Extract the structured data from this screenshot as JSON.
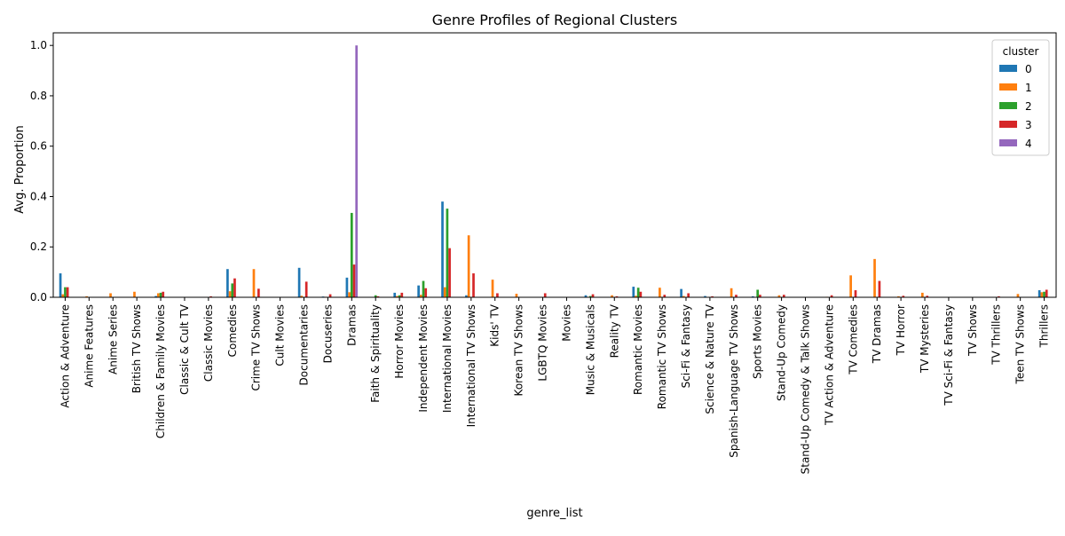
{
  "chart_data": {
    "type": "bar",
    "title": "Genre Profiles of Regional Clusters",
    "xlabel": "genre_list",
    "ylabel": "Avg. Proportion",
    "ylim": [
      0,
      1.05
    ],
    "yticks": [
      0.0,
      0.2,
      0.4,
      0.6,
      0.8,
      1.0
    ],
    "ytick_labels": [
      "0.0",
      "0.2",
      "0.4",
      "0.6",
      "0.8",
      "1.0"
    ],
    "grid": false,
    "legend": {
      "title": "cluster",
      "placement": "top-right"
    },
    "categories": [
      "Action & Adventure",
      "Anime Features",
      "Anime Series",
      "British TV Shows",
      "Children & Family Movies",
      "Classic & Cult TV",
      "Classic Movies",
      "Comedies",
      "Crime TV Shows",
      "Cult Movies",
      "Documentaries",
      "Docuseries",
      "Dramas",
      "Faith & Spirituality",
      "Horror Movies",
      "Independent Movies",
      "International Movies",
      "International TV Shows",
      "Kids' TV",
      "Korean TV Shows",
      "LGBTQ Movies",
      "Movies",
      "Music & Musicals",
      "Reality TV",
      "Romantic Movies",
      "Romantic TV Shows",
      "Sci-Fi & Fantasy",
      "Science & Nature TV",
      "Spanish-Language TV Shows",
      "Sports Movies",
      "Stand-Up Comedy",
      "Stand-Up Comedy & Talk Shows",
      "TV Action & Adventure",
      "TV Comedies",
      "TV Dramas",
      "TV Horror",
      "TV Mysteries",
      "TV Sci-Fi & Fantasy",
      "TV Shows",
      "TV Thrillers",
      "Teen TV Shows",
      "Thrillers"
    ],
    "series": [
      {
        "name": "0",
        "color": "#1f77b4",
        "values": [
          0.095,
          0.0,
          0.0,
          0.0,
          0.005,
          0.0,
          0.0,
          0.112,
          0.0,
          0.0,
          0.117,
          0.003,
          0.078,
          0.0,
          0.018,
          0.047,
          0.38,
          0.008,
          0.0,
          0.0,
          0.0,
          0.0,
          0.008,
          0.0,
          0.042,
          0.0,
          0.033,
          0.005,
          0.0,
          0.004,
          0.0,
          0.0,
          0.0,
          0.0,
          0.0,
          0.0,
          0.0,
          0.0,
          0.0,
          0.0,
          0.0,
          0.028
        ]
      },
      {
        "name": "1",
        "color": "#ff7f0e",
        "values": [
          0.012,
          0.004,
          0.016,
          0.022,
          0.016,
          0.0,
          0.0,
          0.024,
          0.112,
          0.0,
          0.006,
          0.002,
          0.02,
          0.0,
          0.005,
          0.01,
          0.04,
          0.246,
          0.07,
          0.014,
          0.0,
          0.0,
          0.002,
          0.008,
          0.006,
          0.038,
          0.005,
          0.0,
          0.036,
          0.0,
          0.008,
          0.0,
          0.002,
          0.087,
          0.152,
          0.004,
          0.018,
          0.0,
          0.0,
          0.0,
          0.013,
          0.02
        ]
      },
      {
        "name": "2",
        "color": "#2ca02c",
        "values": [
          0.04,
          0.0,
          0.0,
          0.0,
          0.018,
          0.0,
          0.0,
          0.055,
          0.0,
          0.0,
          0.0,
          0.0,
          0.335,
          0.008,
          0.008,
          0.065,
          0.352,
          0.0,
          0.0,
          0.0,
          0.0,
          0.0,
          0.005,
          0.0,
          0.038,
          0.0,
          0.0,
          0.0,
          0.0,
          0.03,
          0.0,
          0.0,
          0.0,
          0.0,
          0.0,
          0.0,
          0.0,
          0.0,
          0.0,
          0.0,
          0.0,
          0.022
        ]
      },
      {
        "name": "3",
        "color": "#d62728",
        "values": [
          0.04,
          0.0,
          0.0,
          0.0,
          0.022,
          0.0,
          0.004,
          0.075,
          0.034,
          0.0,
          0.062,
          0.012,
          0.13,
          0.004,
          0.018,
          0.036,
          0.195,
          0.095,
          0.016,
          0.0,
          0.016,
          0.0,
          0.012,
          0.004,
          0.022,
          0.01,
          0.016,
          0.004,
          0.01,
          0.01,
          0.01,
          0.0,
          0.008,
          0.028,
          0.065,
          0.006,
          0.006,
          0.0,
          0.0,
          0.004,
          0.0,
          0.03
        ]
      },
      {
        "name": "4",
        "color": "#9467bd",
        "values": [
          0.0,
          0.0,
          0.0,
          0.0,
          0.0,
          0.0,
          0.0,
          0.0,
          0.0,
          0.0,
          0.0,
          0.0,
          1.0,
          0.0,
          0.0,
          0.0,
          0.0,
          0.0,
          0.0,
          0.0,
          0.0,
          0.0,
          0.0,
          0.0,
          0.0,
          0.0,
          0.0,
          0.0,
          0.0,
          0.0,
          0.0,
          0.0,
          0.0,
          0.0,
          0.0,
          0.0,
          0.0,
          0.0,
          0.0,
          0.0,
          0.0,
          0.0
        ]
      }
    ]
  }
}
